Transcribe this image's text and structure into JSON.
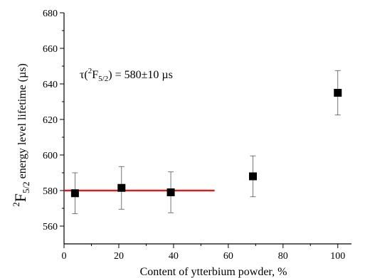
{
  "chart_data": {
    "type": "scatter",
    "title": "",
    "xlabel": "Content of ytterbium powder, %",
    "ylabel": {
      "sup": "2",
      "main": "F",
      "sub": "5/2",
      "rest": "  energy level lifetime (µs)"
    },
    "xlim": [
      0,
      105
    ],
    "ylim": [
      550,
      680
    ],
    "x_ticks": [
      0,
      20,
      40,
      60,
      80,
      100
    ],
    "y_ticks": [
      560,
      580,
      600,
      620,
      640,
      660,
      680
    ],
    "grid": false,
    "series": [
      {
        "x": [
          4,
          21,
          39,
          69,
          100
        ],
        "y": [
          578.5,
          581.5,
          579,
          588,
          635
        ],
        "err": [
          11.5,
          12,
          11.5,
          11.5,
          12.5
        ],
        "marker": "square",
        "color": "#000000"
      }
    ],
    "fit_line": {
      "x": [
        0,
        55
      ],
      "y": [
        580,
        580
      ],
      "color": "#cc2222"
    },
    "annotation": {
      "tau": "τ(",
      "sup": "2",
      "F": "F",
      "sub": "5/2",
      "value": ") = 580±10 µs"
    }
  }
}
